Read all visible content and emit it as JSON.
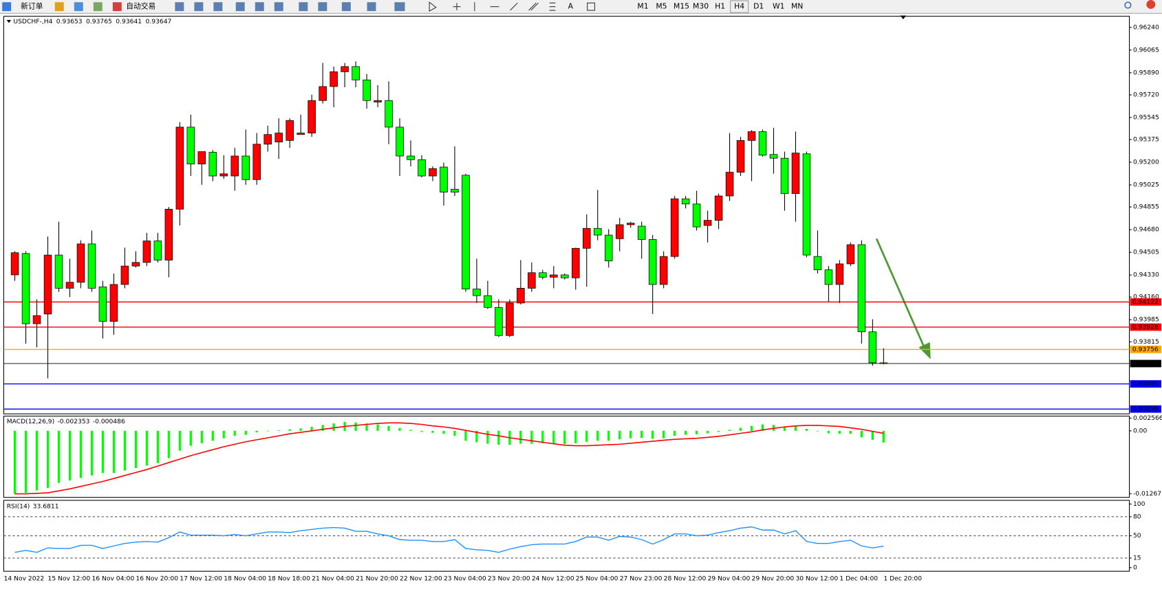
{
  "toolbar": {
    "buttons": [
      "新订单",
      "自动交易"
    ],
    "timeframes": [
      "M1",
      "M5",
      "M15",
      "M30",
      "H1",
      "H4",
      "D1",
      "W1",
      "MN"
    ]
  },
  "chart_data": [
    {
      "type": "candlestick",
      "title": "USDCHF-,H4",
      "x_labels": [
        "14 Nov 2022",
        "15 Nov 12:00",
        "16 Nov 04:00",
        "16 Nov 20:00",
        "17 Nov 12:00",
        "18 Nov 04:00",
        "18 Nov 18:00",
        "21 Nov 04:00",
        "21 Nov 20:00",
        "22 Nov 12:00",
        "23 Nov 04:00",
        "23 Nov 20:00",
        "24 Nov 12:00",
        "25 Nov 04:00",
        "27 Nov 23:00",
        "28 Nov 12:00",
        "29 Nov 04:00",
        "29 Nov 20:00",
        "30 Nov 12:00",
        "1 Dec 04:00",
        "1 Dec 20:00"
      ],
      "open": [
        0.94331,
        0.94496,
        0.93954,
        0.94029,
        0.94484,
        0.94228,
        0.94274,
        0.9457,
        0.94239,
        0.93972,
        0.94257,
        0.94399,
        0.94427,
        0.94593,
        0.94445,
        0.94838,
        0.95471,
        0.95186,
        0.95277,
        0.95094,
        0.95094,
        0.95248,
        0.95066,
        0.95339,
        0.95356,
        0.95368,
        0.95414,
        0.95425,
        0.95676,
        0.95784,
        0.95898,
        0.95938,
        0.95835,
        0.95664,
        0.95676,
        0.95471,
        0.95248,
        0.9522,
        0.95094,
        0.95163,
        0.94992,
        0.951,
        0.94222,
        0.94171,
        0.9408,
        0.93863,
        0.94114,
        0.94228,
        0.94348,
        0.94313,
        0.94331,
        0.94308,
        0.94536,
        0.9469,
        0.94638,
        0.9461,
        0.94718,
        0.94707,
        0.94604,
        0.94257,
        0.94473,
        0.94918,
        0.94878,
        0.94712,
        0.94752,
        0.9494,
        0.95123,
        0.95368,
        0.95436,
        0.9526,
        0.95231,
        0.94958,
        0.95265,
        0.94473,
        0.9437,
        0.94257,
        0.94416,
        0.94564,
        0.93892,
        0.93653
      ],
      "high": [
        0.94513,
        0.94513,
        0.94142,
        0.94627,
        0.94741,
        0.94456,
        0.94598,
        0.94673,
        0.94285,
        0.94342,
        0.94541,
        0.94513,
        0.94655,
        0.94655,
        0.94855,
        0.9551,
        0.95567,
        0.95282,
        0.95294,
        0.95254,
        0.95311,
        0.95453,
        0.95425,
        0.95482,
        0.95539,
        0.95539,
        0.95567,
        0.95721,
        0.95966,
        0.95938,
        0.95966,
        0.95978,
        0.95881,
        0.95795,
        0.95824,
        0.95539,
        0.95368,
        0.95254,
        0.95168,
        0.95197,
        0.95322,
        0.95111,
        0.94456,
        0.94285,
        0.94142,
        0.94142,
        0.94445,
        0.94427,
        0.9437,
        0.94399,
        0.94342,
        0.94541,
        0.94798,
        0.94986,
        0.94684,
        0.9477,
        0.94741,
        0.94741,
        0.94638,
        0.94513,
        0.9494,
        0.9494,
        0.9498,
        0.94826,
        0.94958,
        0.95425,
        0.95396,
        0.95448,
        0.95453,
        0.95465,
        0.95282,
        0.95436,
        0.95282,
        0.94673,
        0.94399,
        0.94445,
        0.94581,
        0.94598,
        0.93989,
        0.93765
      ],
      "low": [
        0.94285,
        0.93801,
        0.93772,
        0.93533,
        0.942,
        0.9416,
        0.94228,
        0.942,
        0.9384,
        0.93869,
        0.94228,
        0.94388,
        0.94399,
        0.94427,
        0.94313,
        0.94712,
        0.95094,
        0.95026,
        0.95054,
        0.95072,
        0.9498,
        0.95026,
        0.95026,
        0.95282,
        0.95225,
        0.95311,
        0.95414,
        0.95396,
        0.95653,
        0.95624,
        0.95778,
        0.95778,
        0.95613,
        0.95624,
        0.95339,
        0.95094,
        0.95168,
        0.95083,
        0.95054,
        0.94866,
        0.9494,
        0.942,
        0.94114,
        0.94068,
        0.93852,
        0.93852,
        0.94103,
        0.942,
        0.94296,
        0.94228,
        0.94296,
        0.94217,
        0.94239,
        0.94598,
        0.94388,
        0.94513,
        0.94695,
        0.94456,
        0.94029,
        0.94228,
        0.94456,
        0.94844,
        0.94673,
        0.94581,
        0.94684,
        0.94901,
        0.95094,
        0.95054,
        0.95243,
        0.95111,
        0.94826,
        0.94741,
        0.94467,
        0.94342,
        0.94125,
        0.94114,
        0.94399,
        0.93801,
        0.9363,
        0.93641
      ],
      "close": [
        0.94502,
        0.93954,
        0.94017,
        0.94484,
        0.94228,
        0.94274,
        0.9457,
        0.94228,
        0.93972,
        0.94257,
        0.94399,
        0.94427,
        0.94593,
        0.94445,
        0.94838,
        0.95471,
        0.95186,
        0.95282,
        0.95094,
        0.95111,
        0.95248,
        0.95066,
        0.95339,
        0.95414,
        0.95425,
        0.95522,
        0.95425,
        0.95676,
        0.95784,
        0.95898,
        0.95938,
        0.95835,
        0.95676,
        0.95676,
        0.95471,
        0.95248,
        0.9522,
        0.95094,
        0.95151,
        0.94969,
        0.94969,
        0.94222,
        0.94171,
        0.9408,
        0.93863,
        0.94114,
        0.94228,
        0.94348,
        0.94313,
        0.94331,
        0.94308,
        0.94536,
        0.9469,
        0.94638,
        0.94439,
        0.94718,
        0.9473,
        0.94604,
        0.94257,
        0.94473,
        0.94918,
        0.94878,
        0.94701,
        0.94752,
        0.9494,
        0.95123,
        0.95368,
        0.95436,
        0.95254,
        0.95231,
        0.94958,
        0.95271,
        0.94484,
        0.9437,
        0.94257,
        0.94416,
        0.94564,
        0.93892,
        0.93653,
        0.93647
      ],
      "up_color": "#ff0000",
      "down_color": "#00ff00",
      "ylim": [
        0.93259,
        0.96326
      ],
      "yticks": [
        {
          "value": 0.9624,
          "label": "0.96240"
        },
        0.96065,
        {
          "value": 0.9589,
          "label": "0.95890"
        },
        {
          "value": 0.9572,
          "label": "0.95720"
        },
        0.95545,
        0.95375,
        {
          "value": 0.952,
          "label": "0.95200"
        },
        0.95025,
        0.94855,
        {
          "value": 0.9468,
          "label": "0.94680"
        },
        0.94505,
        {
          "value": 0.9433,
          "label": "0.94330"
        },
        {
          "value": 0.9416,
          "label": "0.94160"
        },
        0.93985,
        0.93815
      ],
      "hlines": [
        {
          "value": 0.94122,
          "color": "#ff0000"
        },
        {
          "value": 0.93928,
          "color": "#ff0000"
        },
        {
          "value": 0.93756,
          "color": "#ffa500"
        },
        {
          "value": 0.9349,
          "label": "0.93490",
          "color": "#0000ff"
        },
        {
          "value": 0.93296,
          "color": "#0000ff"
        }
      ]
    },
    {
      "type": "macd",
      "title": "MACD(12,26,9)",
      "series": [
        {
          "color": "#00ff00",
          "values": [
            -0.0127,
            -0.0125,
            -0.012,
            -0.0115,
            -0.0105,
            -0.01,
            -0.0095,
            -0.009,
            -0.0085,
            -0.0085,
            -0.008,
            -0.0075,
            -0.007,
            -0.0065,
            -0.0055,
            -0.004,
            -0.003,
            -0.0025,
            -0.002,
            -0.0015,
            -0.001,
            -0.0008,
            -0.0003,
            -0.0001,
            0.0001,
            0.0003,
            0.0005,
            0.0008,
            0.0012,
            0.0015,
            0.0018,
            0.0017,
            0.0015,
            0.0013,
            0.001,
            0.0006,
            0.0002,
            -0.0002,
            -0.0004,
            -0.0006,
            -0.001,
            -0.002,
            -0.0023,
            -0.0026,
            -0.0028,
            -0.0028,
            -0.0026,
            -0.0026,
            -0.0025,
            -0.0025,
            -0.0027,
            -0.0025,
            -0.0022,
            -0.002,
            -0.002,
            -0.0017,
            -0.0015,
            -0.0014,
            -0.0016,
            -0.0015,
            -0.001,
            -0.0008,
            -0.0007,
            -0.0005,
            -0.0002,
            0.0002,
            0.0006,
            0.001,
            0.0013,
            0.0012,
            0.0009,
            0.001,
            0.0004,
            -0.0001,
            -0.0005,
            -0.0006,
            -0.0006,
            -0.0013,
            -0.0018,
            -0.002353
          ]
        },
        {
          "color": "#ff0000",
          "values": [
            -0.0127,
            -0.0127,
            -0.0126,
            -0.0125,
            -0.0121,
            -0.0117,
            -0.0112,
            -0.0107,
            -0.0102,
            -0.0096,
            -0.009,
            -0.0084,
            -0.0078,
            -0.0071,
            -0.0064,
            -0.0057,
            -0.005,
            -0.0044,
            -0.0038,
            -0.0032,
            -0.0027,
            -0.0022,
            -0.0018,
            -0.0014,
            -0.001,
            -0.0006,
            -0.0003,
            0,
            0.0003,
            0.0006,
            0.0009,
            0.0011,
            0.0013,
            0.0015,
            0.0016,
            0.0016,
            0.0015,
            0.0013,
            0.001,
            0.0008,
            0.0005,
            0.0001,
            -0.0003,
            -0.0007,
            -0.001,
            -0.0014,
            -0.0017,
            -0.002,
            -0.0023,
            -0.0026,
            -0.0029,
            -0.003,
            -0.003,
            -0.0029,
            -0.0028,
            -0.0027,
            -0.0025,
            -0.0023,
            -0.0021,
            -0.0019,
            -0.0017,
            -0.0016,
            -0.0015,
            -0.0013,
            -0.0011,
            -0.0008,
            -0.0005,
            -0.0002,
            0.0002,
            0.0005,
            0.0008,
            0.001,
            0.0011,
            0.0011,
            0.001,
            0.0009,
            0.0006,
            0.0003,
            -0.0001,
            -0.000486
          ]
        }
      ],
      "ylim": [
        -0.01341,
        0.00298
      ],
      "yticks": [
        0.002566,
        {
          "value": 0,
          "label": "0.00"
        },
        -0.01267
      ]
    },
    {
      "type": "line",
      "title": "RSI(14)",
      "series": [
        {
          "color": "#1e90ff",
          "values": [
            24,
            27,
            24,
            31,
            30,
            30,
            35,
            35,
            30,
            34,
            38,
            40,
            41,
            40,
            47,
            56,
            51,
            51,
            51,
            50,
            52,
            50,
            53,
            56,
            56,
            55,
            58,
            60,
            62,
            63,
            62,
            57,
            57,
            53,
            50,
            44,
            43,
            43,
            41,
            41,
            44,
            30,
            28,
            27,
            24,
            29,
            33,
            36,
            37,
            37,
            37,
            41,
            48,
            48,
            43,
            49,
            48,
            44,
            37,
            44,
            53,
            53,
            50,
            51,
            55,
            58,
            62,
            64,
            59,
            59,
            53,
            58,
            41,
            38,
            38,
            41,
            43,
            34,
            31,
            33.6811
          ]
        }
      ],
      "ylim": [
        -5.8,
        105.8
      ],
      "yticks": [
        100,
        80,
        50,
        15,
        0
      ]
    }
  ]
}
